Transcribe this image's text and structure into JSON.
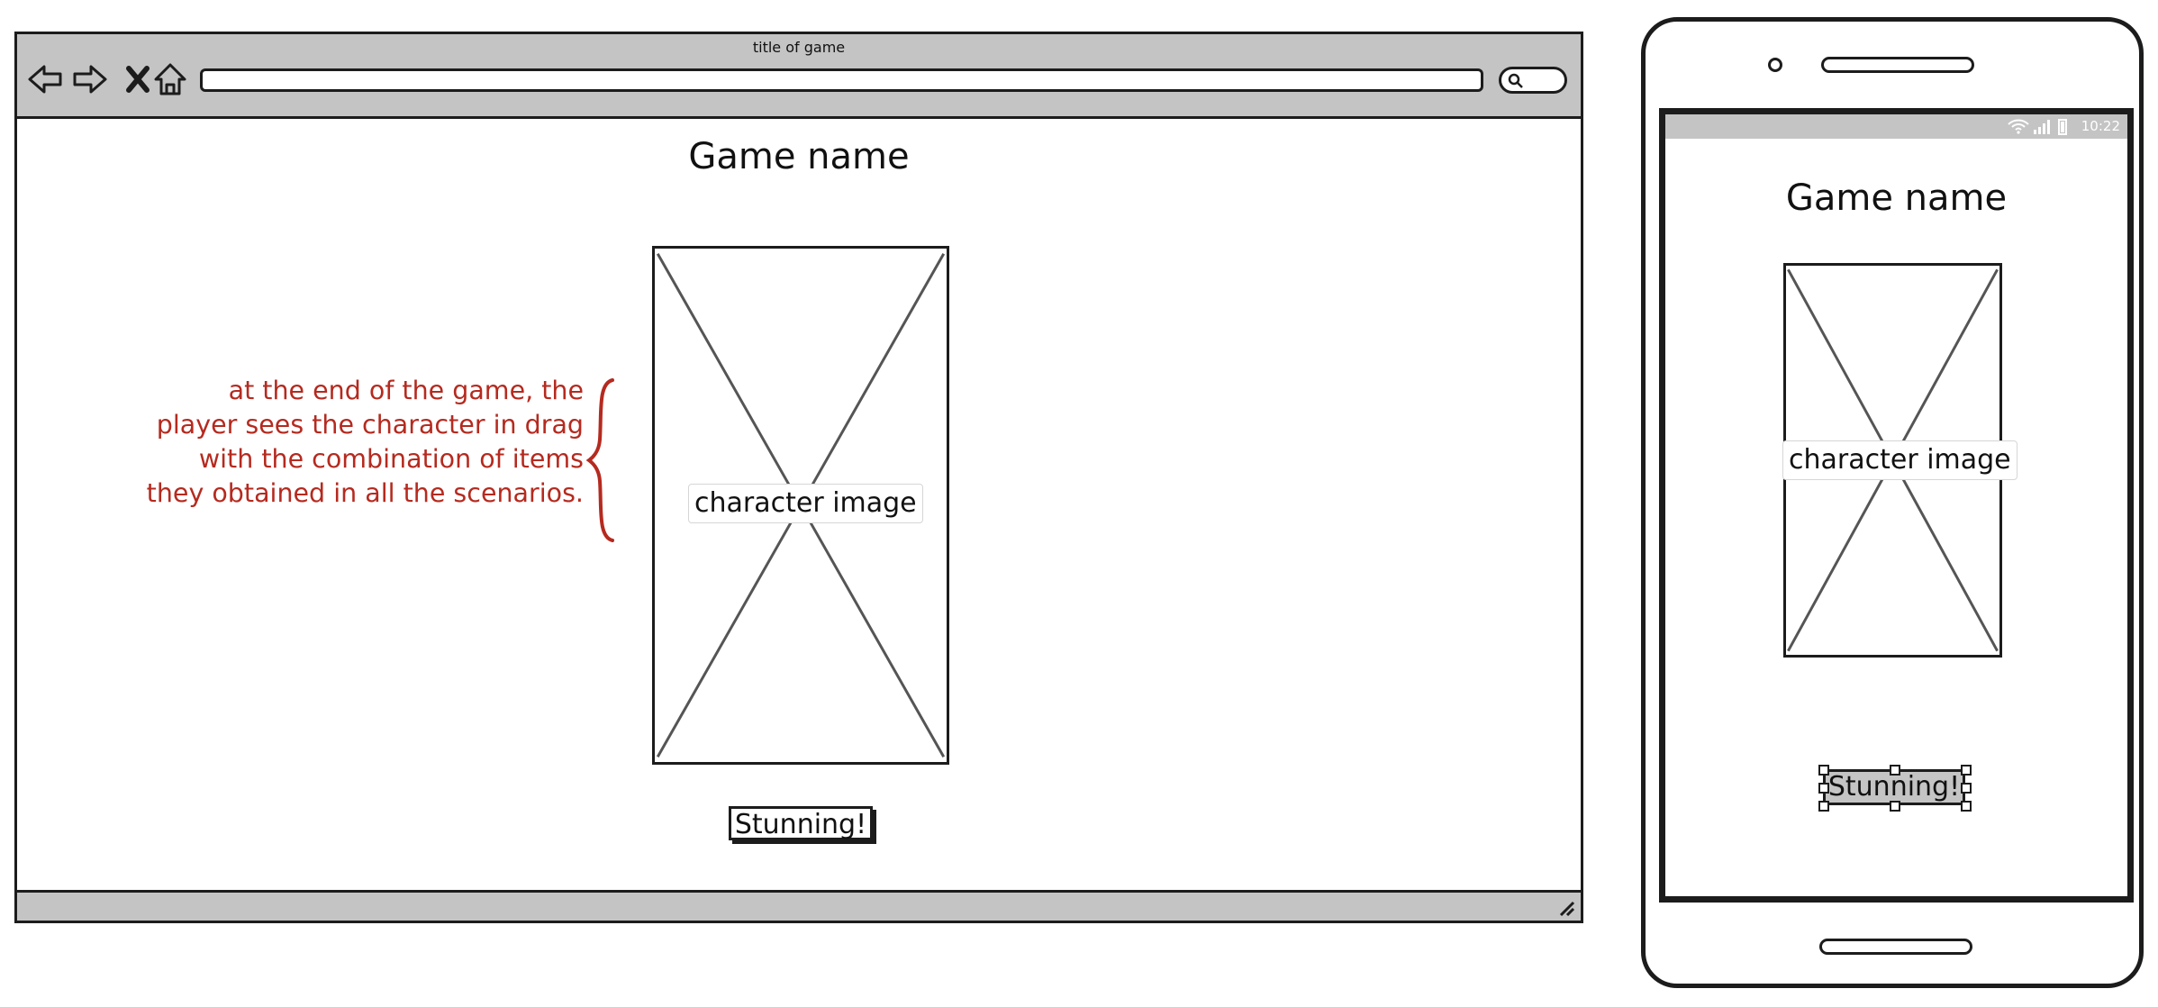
{
  "desktop": {
    "window_title": "title of game",
    "game_title": "Game name",
    "image_label": "character image",
    "button_label": "Stunning!",
    "annotation": "at the end of the game, the player sees the character in drag with the combination of items they obtained in all the scenarios.",
    "nav_icons": [
      "back-arrow-icon",
      "forward-arrow-icon",
      "stop-icon",
      "home-icon"
    ],
    "search_icon": "search-icon"
  },
  "mobile": {
    "status_time": "10:22",
    "status_icons": [
      "wifi-icon",
      "signal-icon",
      "battery-icon"
    ],
    "game_title": "Game name",
    "image_label": "character image",
    "button_label": "Stunning!"
  },
  "colors": {
    "chrome_gray": "#c4c4c4",
    "annotation_red": "#b52a1f",
    "outline": "#1c1c1c"
  }
}
